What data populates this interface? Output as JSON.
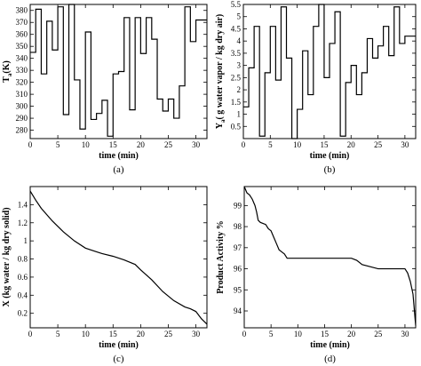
{
  "chart_data": [
    {
      "id": "a",
      "type": "line",
      "step": true,
      "caption": "(a)",
      "xlabel": "time (min)",
      "ylabel_main": "T",
      "ylabel_sub": "a",
      "ylabel_rest": "(K)",
      "xlim": [
        0,
        32
      ],
      "ylim": [
        273,
        385
      ],
      "xticks": [
        0,
        5,
        10,
        15,
        20,
        25,
        30
      ],
      "yticks": [
        280,
        290,
        300,
        310,
        320,
        330,
        340,
        350,
        360,
        370,
        380
      ],
      "x": [
        0,
        1,
        2,
        3,
        4,
        5,
        6,
        7,
        8,
        9,
        10,
        11,
        12,
        13,
        14,
        15,
        16,
        17,
        18,
        19,
        20,
        21,
        22,
        23,
        24,
        25,
        26,
        27,
        28,
        29,
        30,
        31,
        32
      ],
      "y": [
        345,
        381,
        327,
        371,
        347,
        383,
        293,
        385,
        322,
        281,
        362,
        289,
        294,
        305,
        275,
        327,
        329,
        374,
        297,
        374,
        344,
        374,
        356,
        306,
        296,
        306,
        290,
        317,
        383,
        354,
        372,
        372,
        372
      ]
    },
    {
      "id": "b",
      "type": "line",
      "step": true,
      "caption": "(b)",
      "xlabel": "time (min)",
      "ylabel_main": "Y",
      "ylabel_sub": "a",
      "ylabel_rest": "( g water vapor / kg dry air)",
      "xlim": [
        0,
        32
      ],
      "ylim": [
        0,
        5.5
      ],
      "xticks": [
        0,
        5,
        10,
        15,
        20,
        25,
        30
      ],
      "yticks": [
        0.5,
        1,
        1.5,
        2,
        2.5,
        3,
        3.5,
        4,
        4.5,
        5,
        5.5
      ],
      "x": [
        0,
        1,
        2,
        3,
        4,
        5,
        6,
        7,
        8,
        9,
        10,
        11,
        12,
        13,
        14,
        15,
        16,
        17,
        18,
        19,
        20,
        21,
        22,
        23,
        24,
        25,
        26,
        27,
        28,
        29,
        30,
        31,
        32
      ],
      "y": [
        1.3,
        2.9,
        4.6,
        0.1,
        2.7,
        4.6,
        2.4,
        5.4,
        3.3,
        0.0,
        1.2,
        3.6,
        1.8,
        4.6,
        5.5,
        2.5,
        3.9,
        5.2,
        0.1,
        2.3,
        3.0,
        1.8,
        2.7,
        4.1,
        3.3,
        3.8,
        4.6,
        3.4,
        5.4,
        3.9,
        4.2,
        4.2,
        4.2
      ]
    },
    {
      "id": "c",
      "type": "line",
      "caption": "(c)",
      "xlabel": "time (min)",
      "ylabel": "X (kg water / kg dry solid)",
      "xlim": [
        0,
        32
      ],
      "ylim": [
        0.04,
        1.6
      ],
      "xticks": [
        0,
        5,
        10,
        15,
        20,
        25,
        30
      ],
      "yticks": [
        0.2,
        0.4,
        0.6,
        0.8,
        1,
        1.2,
        1.4
      ],
      "x": [
        0,
        1,
        2,
        4,
        6,
        8,
        10,
        12,
        13,
        15,
        17,
        19,
        20,
        22,
        24,
        26,
        28,
        29,
        30,
        31,
        32
      ],
      "y": [
        1.55,
        1.45,
        1.36,
        1.22,
        1.1,
        1.0,
        0.92,
        0.88,
        0.86,
        0.83,
        0.79,
        0.74,
        0.68,
        0.57,
        0.44,
        0.34,
        0.27,
        0.25,
        0.22,
        0.14,
        0.08
      ]
    },
    {
      "id": "d",
      "type": "line",
      "caption": "(d)",
      "xlabel": "time (min)",
      "ylabel": "Product Activity %",
      "xlim": [
        0,
        32
      ],
      "ylim": [
        93.2,
        99.9
      ],
      "xticks": [
        0,
        5,
        10,
        15,
        20,
        25,
        30
      ],
      "yticks": [
        94,
        95,
        96,
        97,
        98,
        99
      ],
      "x": [
        0,
        0.5,
        1,
        1.5,
        2,
        2.3,
        2.6,
        3,
        4,
        4.5,
        5,
        5.5,
        6,
        6.5,
        7,
        7.5,
        8,
        10,
        15,
        20,
        21,
        22,
        25,
        30,
        30.5,
        31,
        31.5,
        32
      ],
      "y": [
        99.9,
        99.6,
        99.5,
        99.3,
        99.0,
        98.7,
        98.3,
        98.2,
        98.1,
        97.9,
        97.8,
        97.5,
        97.2,
        96.9,
        96.8,
        96.7,
        96.5,
        96.5,
        96.5,
        96.5,
        96.4,
        96.2,
        96.0,
        96.0,
        95.8,
        95.4,
        94.8,
        93.3
      ]
    }
  ]
}
